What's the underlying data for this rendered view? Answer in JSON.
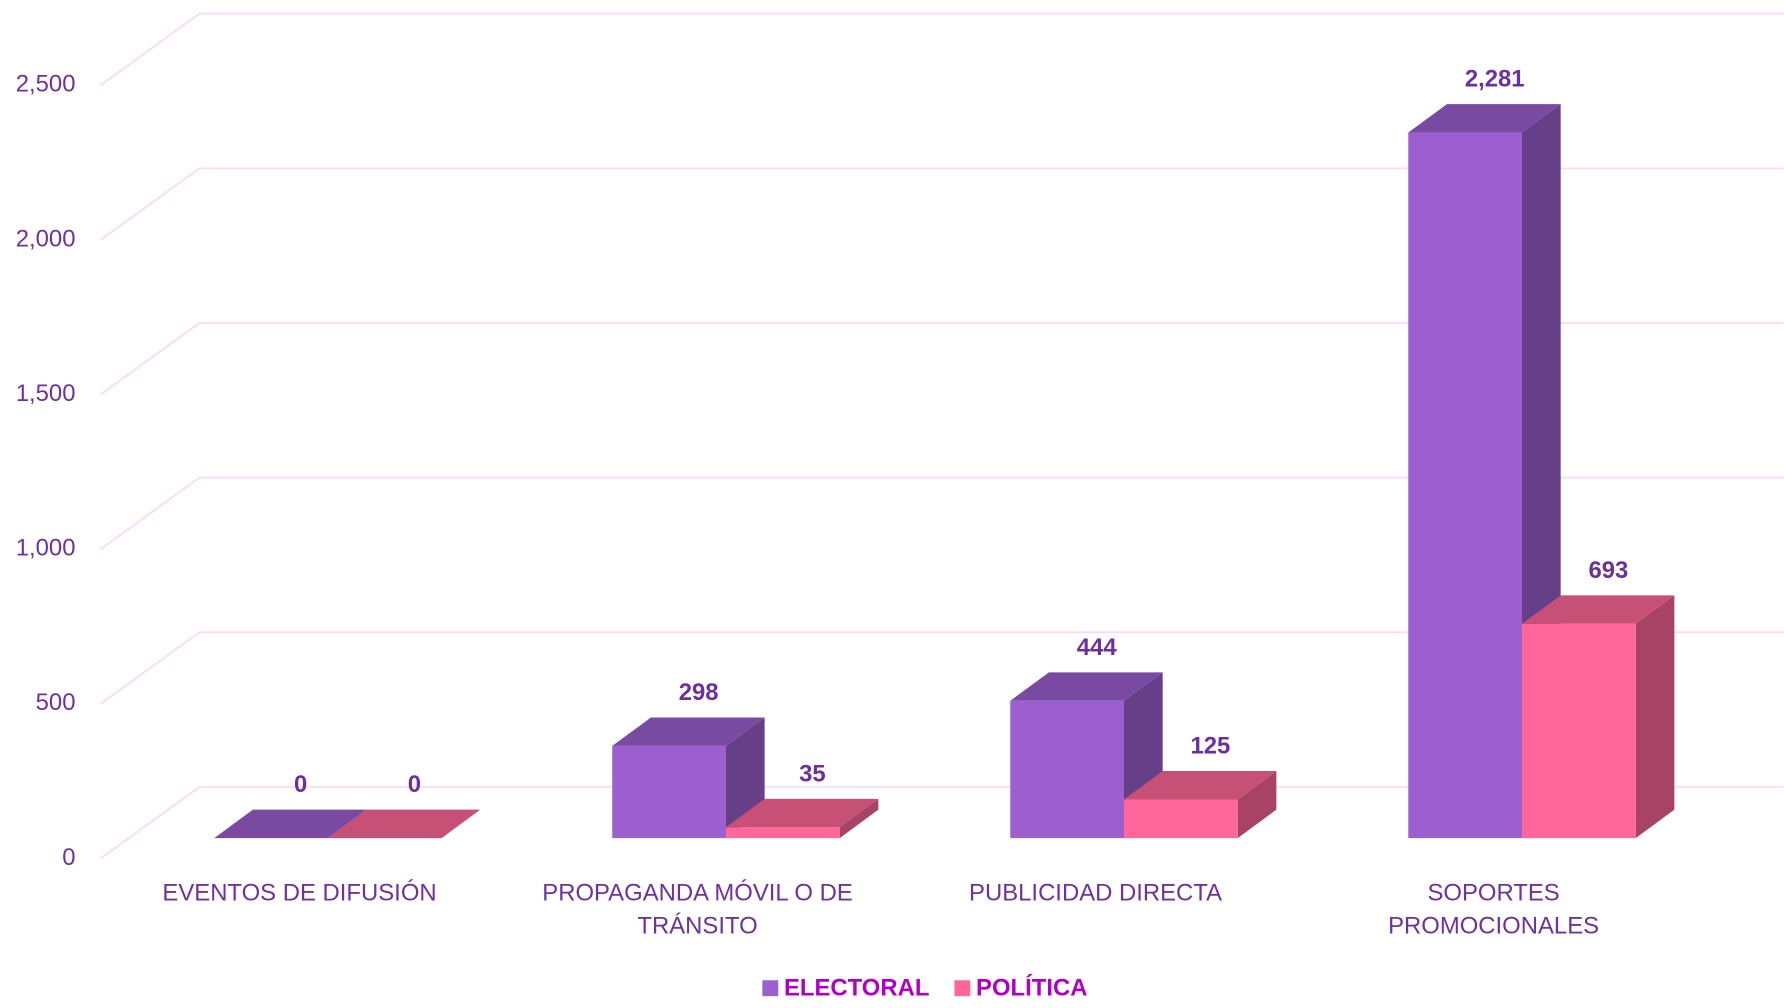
{
  "chart_data": {
    "type": "bar3d",
    "categories": [
      "EVENTOS DE DIFUSIÓN",
      "PROPAGANDA MÓVIL O DE TRÁNSITO",
      "PUBLICIDAD DIRECTA",
      "SOPORTES PROMOCIONALES"
    ],
    "series": [
      {
        "name": "ELECTORAL",
        "color": "#9b5fd0",
        "values": [
          0,
          298,
          444,
          2281
        ],
        "value_labels": [
          "0",
          "298",
          "444",
          "2,281"
        ]
      },
      {
        "name": "POLÍTICA",
        "color": "#ff6699",
        "values": [
          0,
          35,
          125,
          693
        ],
        "value_labels": [
          "0",
          "35",
          "125",
          "693"
        ]
      }
    ],
    "ylim": [
      0,
      2500
    ],
    "yticks": [
      0,
      500,
      {
        "value": 1000,
        "label": "1,000"
      },
      {
        "value": 1500,
        "label": "1,500"
      },
      {
        "value": 2000,
        "label": "2,000"
      },
      {
        "value": 2500,
        "label": "2,500"
      }
    ],
    "grid": true,
    "legend": "bottom"
  }
}
